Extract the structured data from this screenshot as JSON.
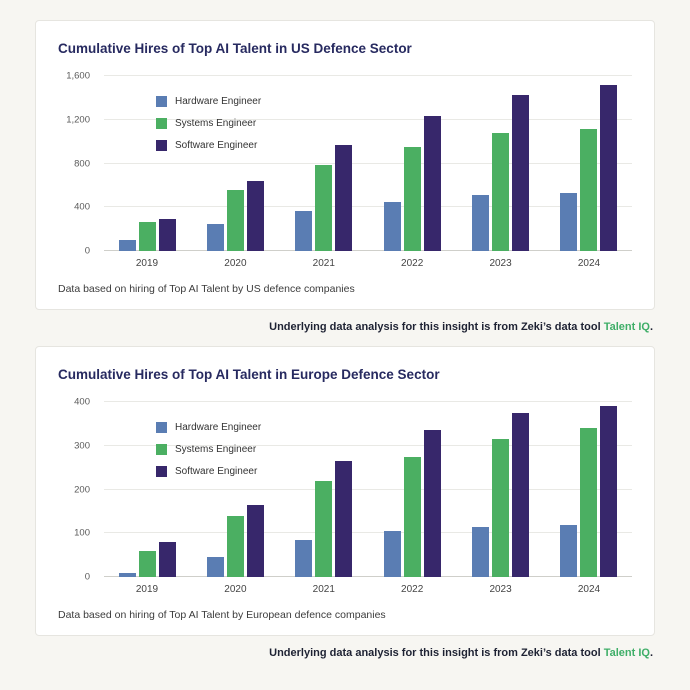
{
  "colors": {
    "hardware": "#5a7db3",
    "systems": "#4baf62",
    "software": "#37276b",
    "title": "#272a60",
    "talentiq_green": "#3fae68",
    "background": "#f7f6f2"
  },
  "footer": {
    "prefix": "Underlying data analysis for this insight is from Zeki’s data tool ",
    "link": "Talent IQ",
    "suffix": "."
  },
  "chart_data": [
    {
      "type": "bar",
      "title": "Cumulative Hires of Top AI Talent in US Defence Sector",
      "categories": [
        "2019",
        "2020",
        "2021",
        "2022",
        "2023",
        "2024"
      ],
      "series": [
        {
          "name": "Hardware Engineer",
          "color": "#5a7db3",
          "values": [
            100,
            250,
            370,
            450,
            510,
            530
          ]
        },
        {
          "name": "Systems Engineer",
          "color": "#4baf62",
          "values": [
            265,
            560,
            790,
            950,
            1080,
            1120
          ]
        },
        {
          "name": "Software Engineer",
          "color": "#37276b",
          "values": [
            290,
            640,
            970,
            1230,
            1430,
            1520
          ]
        }
      ],
      "ylim": [
        0,
        1600
      ],
      "yticks": [
        0,
        400,
        800,
        1200,
        1600
      ],
      "grid": "horizontal",
      "legend_position": "top-left-inside",
      "caption": "Data based on hiring of Top AI Talent by US defence companies"
    },
    {
      "type": "bar",
      "title": "Cumulative Hires of Top AI Talent in Europe Defence Sector",
      "categories": [
        "2019",
        "2020",
        "2021",
        "2022",
        "2023",
        "2024"
      ],
      "series": [
        {
          "name": "Hardware Engineer",
          "color": "#5a7db3",
          "values": [
            10,
            45,
            85,
            105,
            115,
            120
          ]
        },
        {
          "name": "Systems Engineer",
          "color": "#4baf62",
          "values": [
            60,
            140,
            220,
            275,
            315,
            340
          ]
        },
        {
          "name": "Software Engineer",
          "color": "#37276b",
          "values": [
            80,
            165,
            265,
            335,
            375,
            390
          ]
        }
      ],
      "ylim": [
        0,
        400
      ],
      "yticks": [
        0,
        100,
        200,
        300,
        400
      ],
      "grid": "horizontal",
      "legend_position": "top-left-inside",
      "caption": "Data based on hiring of Top AI Talent by European defence companies"
    }
  ]
}
